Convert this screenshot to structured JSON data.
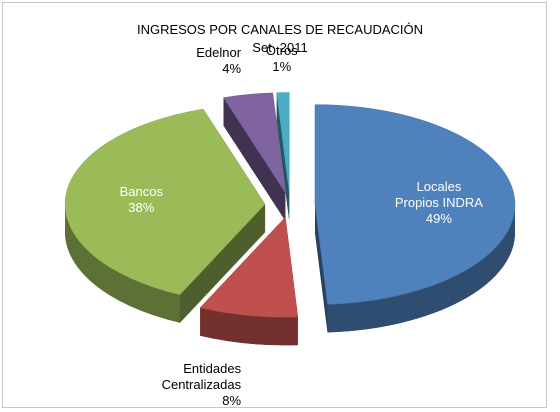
{
  "chart_data": {
    "type": "pie",
    "title": "INGRESOS POR CANALES DE RECAUDACIÓN",
    "subtitle": "Set -2011",
    "categories": [
      "Locales Propios INDRA",
      "Entidades Centralizadas",
      "Bancos",
      "Edelnor",
      "Otros"
    ],
    "values": [
      49,
      8,
      38,
      4,
      1
    ],
    "value_labels": [
      "49%",
      "8%",
      "38%",
      "4%",
      "1%"
    ],
    "colors": [
      "#4f81bd",
      "#c0504d",
      "#9bbb59",
      "#8064a2",
      "#4bacc6"
    ]
  }
}
